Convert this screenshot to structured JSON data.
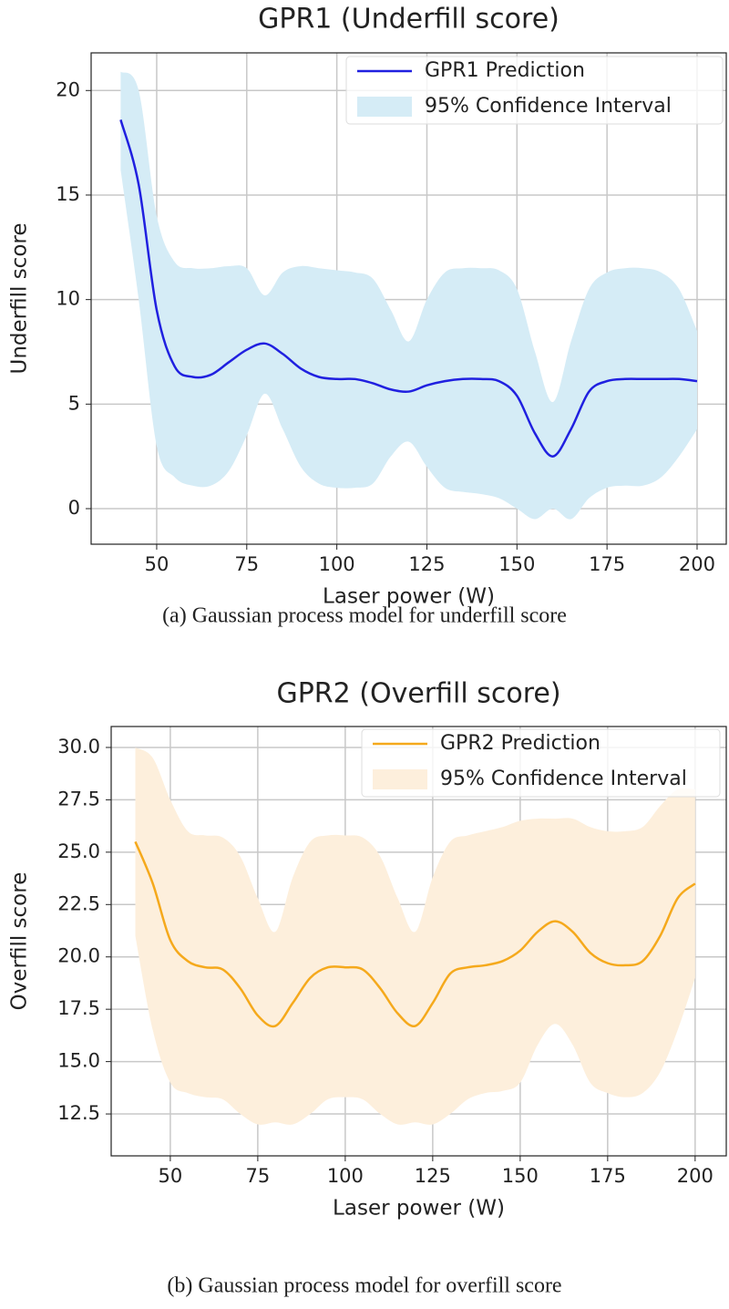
{
  "chart_data": [
    {
      "type": "line",
      "title": "GPR1 (Underfill score)",
      "xlabel": "Laser power (W)",
      "ylabel": "Underfill score",
      "caption": "(a) Gaussian process model for underfill score",
      "x": [
        40,
        45,
        50,
        55,
        60,
        65,
        70,
        75,
        80,
        85,
        90,
        95,
        100,
        105,
        110,
        115,
        120,
        125,
        130,
        135,
        140,
        145,
        150,
        155,
        160,
        165,
        170,
        175,
        180,
        185,
        190,
        195,
        200
      ],
      "series": [
        {
          "name": "GPR1 Prediction",
          "color": "#2020e0",
          "values": [
            18.6,
            15.5,
            9.5,
            6.8,
            6.3,
            6.4,
            7.0,
            7.6,
            7.9,
            7.4,
            6.7,
            6.3,
            6.2,
            6.2,
            6.0,
            5.7,
            5.6,
            5.9,
            6.1,
            6.2,
            6.2,
            6.1,
            5.4,
            3.6,
            2.5,
            3.8,
            5.6,
            6.1,
            6.2,
            6.2,
            6.2,
            6.2,
            6.1
          ]
        }
      ],
      "interval": {
        "name": "95% Confidence Interval",
        "color": "#d5ecf6",
        "lower": [
          16.2,
          10.0,
          3.0,
          1.5,
          1.1,
          1.1,
          1.8,
          3.5,
          5.5,
          3.8,
          2.0,
          1.2,
          1.0,
          1.0,
          1.2,
          2.5,
          3.2,
          2.0,
          1.0,
          0.8,
          0.7,
          0.5,
          0.0,
          -0.5,
          0.0,
          -0.5,
          0.5,
          1.0,
          1.1,
          1.1,
          1.5,
          2.5,
          3.8
        ],
        "upper": [
          20.9,
          20.0,
          14.0,
          11.8,
          11.5,
          11.5,
          11.6,
          11.5,
          10.2,
          11.3,
          11.6,
          11.5,
          11.4,
          11.3,
          11.0,
          9.5,
          8.0,
          10.0,
          11.3,
          11.5,
          11.5,
          11.4,
          10.5,
          7.5,
          5.1,
          8.0,
          10.5,
          11.3,
          11.5,
          11.5,
          11.3,
          10.5,
          8.5
        ]
      },
      "xlim": [
        31.8,
        208.1
      ],
      "ylim": [
        -1.7,
        21.8
      ],
      "xticks": [
        50,
        75,
        100,
        125,
        150,
        175,
        200
      ],
      "yticks": [
        0,
        5,
        10,
        15,
        20
      ],
      "grid": true,
      "legend": "upper right"
    },
    {
      "type": "line",
      "title": "GPR2 (Overfill score)",
      "xlabel": "Laser power (W)",
      "ylabel": "Overfill score",
      "caption": "(b) Gaussian process model for overfill score",
      "x": [
        40,
        45,
        50,
        55,
        60,
        65,
        70,
        75,
        80,
        85,
        90,
        95,
        100,
        105,
        110,
        115,
        120,
        125,
        130,
        135,
        140,
        145,
        150,
        155,
        160,
        165,
        170,
        175,
        180,
        185,
        190,
        195,
        200
      ],
      "series": [
        {
          "name": "GPR2 Prediction",
          "color": "#f5a91c",
          "values": [
            25.5,
            23.5,
            20.8,
            19.8,
            19.5,
            19.4,
            18.5,
            17.2,
            16.7,
            17.8,
            19.0,
            19.5,
            19.5,
            19.4,
            18.5,
            17.3,
            16.7,
            17.8,
            19.2,
            19.5,
            19.6,
            19.8,
            20.3,
            21.2,
            21.7,
            21.2,
            20.2,
            19.7,
            19.6,
            19.8,
            21.0,
            22.8,
            23.5
          ]
        }
      ],
      "interval": {
        "name": "95% Confidence Interval",
        "color": "#fdefdc",
        "lower": [
          21.0,
          16.5,
          14.0,
          13.5,
          13.3,
          13.2,
          12.5,
          12.0,
          12.1,
          12.0,
          12.5,
          13.2,
          13.3,
          13.2,
          12.5,
          12.0,
          12.1,
          12.0,
          12.5,
          13.2,
          13.5,
          13.6,
          14.0,
          15.8,
          16.8,
          15.8,
          14.0,
          13.5,
          13.3,
          13.5,
          14.5,
          16.5,
          19.0
        ],
        "upper": [
          30.0,
          29.5,
          27.5,
          26.0,
          25.8,
          25.7,
          24.8,
          22.8,
          21.2,
          23.8,
          25.5,
          25.8,
          25.8,
          25.7,
          24.8,
          22.8,
          21.2,
          23.8,
          25.5,
          25.8,
          26.0,
          26.2,
          26.5,
          26.6,
          26.6,
          26.6,
          26.2,
          26.0,
          26.0,
          26.2,
          27.2,
          28.0,
          28.0
        ]
      },
      "xlim": [
        33.1,
        208.9
      ],
      "ylim": [
        10.5,
        31.0
      ],
      "xticks": [
        50,
        75,
        100,
        125,
        150,
        175,
        200
      ],
      "yticks": [
        {
          "value": 12.5,
          "label": "12.5"
        },
        {
          "value": 15,
          "label": "15.0"
        },
        {
          "value": 17.5,
          "label": "17.5"
        },
        {
          "value": 20,
          "label": "20.0"
        },
        {
          "value": 22.5,
          "label": "22.5"
        },
        {
          "value": 25,
          "label": "25.0"
        },
        {
          "value": 27.5,
          "label": "27.5"
        },
        {
          "value": 30,
          "label": "30.0"
        }
      ],
      "grid": true,
      "legend": "upper right"
    }
  ]
}
